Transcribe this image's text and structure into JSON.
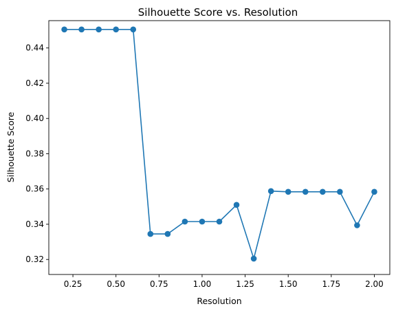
{
  "chart_data": {
    "type": "line",
    "title": "Silhouette Score vs. Resolution",
    "xlabel": "Resolution",
    "ylabel": "Silhouette Score",
    "xlim": [
      0.11,
      2.09
    ],
    "ylim": [
      0.3115,
      0.4555
    ],
    "xticks": [
      "0.25",
      "0.50",
      "0.75",
      "1.00",
      "1.25",
      "1.50",
      "1.75",
      "2.00"
    ],
    "yticks": [
      "0.32",
      "0.34",
      "0.36",
      "0.38",
      "0.40",
      "0.42",
      "0.44"
    ],
    "grid": false,
    "marker": "circle",
    "color": "#1f77b4",
    "series": [
      {
        "x": [
          0.2,
          0.3,
          0.4,
          0.5,
          0.6,
          0.7,
          0.8,
          0.9,
          1.0,
          1.1,
          1.2,
          1.3,
          1.4,
          1.5,
          1.6,
          1.7,
          1.8,
          1.9,
          2.0
        ],
        "values": [
          0.4505,
          0.4505,
          0.4505,
          0.4505,
          0.4505,
          0.3345,
          0.3345,
          0.3415,
          0.3415,
          0.3415,
          0.351,
          0.3205,
          0.3588,
          0.3584,
          0.3584,
          0.3584,
          0.3584,
          0.3394,
          0.3584
        ]
      }
    ]
  }
}
